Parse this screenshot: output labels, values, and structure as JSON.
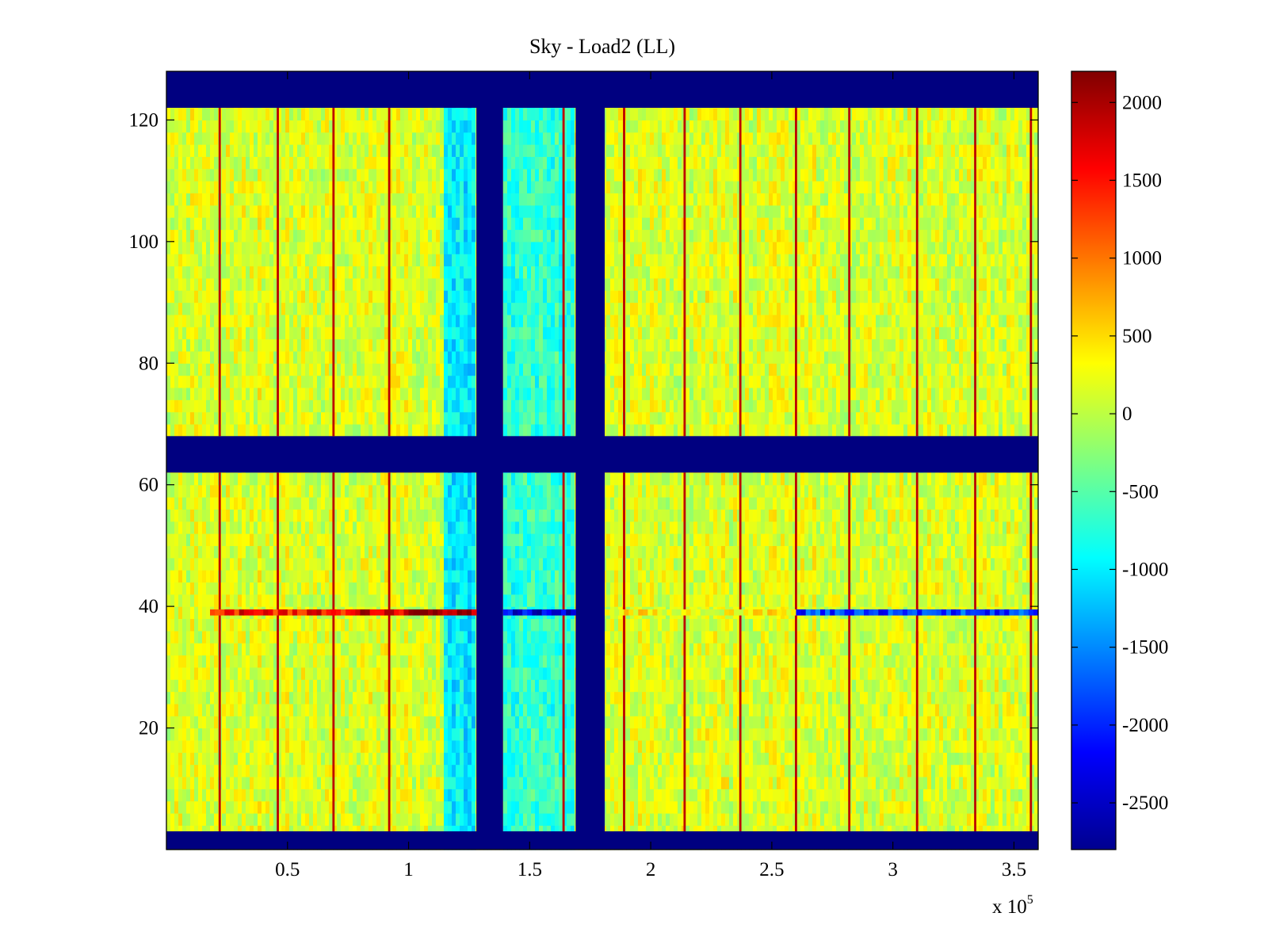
{
  "chart_data": {
    "type": "heatmap",
    "title": "Sky - Load2 (LL)",
    "xlabel": "",
    "ylabel": "",
    "x_exponent_label": "x 10",
    "x_exponent_power": "5",
    "xlim": [
      0,
      3.6
    ],
    "ylim": [
      0,
      128
    ],
    "x_ticks": [
      0.5,
      1,
      1.5,
      2,
      2.5,
      3,
      3.5
    ],
    "x_tick_labels": [
      "0.5",
      "1",
      "1.5",
      "2",
      "2.5",
      "3",
      "3.5"
    ],
    "y_ticks": [
      20,
      40,
      60,
      80,
      100,
      120
    ],
    "y_tick_labels": [
      "20",
      "40",
      "60",
      "80",
      "100",
      "120"
    ],
    "colorbar": {
      "colormap": "jet",
      "range": [
        -2800,
        2200
      ],
      "ticks": [
        -2500,
        -2000,
        -1500,
        -1000,
        -500,
        0,
        500,
        1000,
        1500,
        2000
      ],
      "tick_labels": [
        "-2500",
        "-2000",
        "-1500",
        "-1000",
        "-500",
        "0",
        "500",
        "1000",
        "1500",
        "2000"
      ]
    },
    "masked_value": -2800,
    "masked_rows": [
      [
        0,
        3
      ],
      [
        62,
        68
      ],
      [
        122,
        128
      ]
    ],
    "masked_columns": [
      [
        1.28,
        1.39
      ],
      [
        1.69,
        1.81
      ]
    ],
    "low_level_columns": [
      {
        "range": [
          1.15,
          1.28
        ],
        "level": -1000
      },
      {
        "range": [
          1.39,
          1.69
        ],
        "level": -700
      }
    ],
    "background_level": 150,
    "stripe_columns_x": [
      0.22,
      0.46,
      0.69,
      0.92,
      1.64,
      1.89,
      2.14,
      2.37,
      2.6,
      2.82,
      3.1,
      3.34,
      3.57
    ],
    "stripe_level": 1900,
    "anomaly_row": {
      "y": 39,
      "segments": [
        {
          "range": [
            0.18,
            0.8
          ],
          "level": 1500
        },
        {
          "range": [
            0.8,
            1.0
          ],
          "level": 1800
        },
        {
          "range": [
            1.0,
            1.28
          ],
          "level": 2100
        },
        {
          "range": [
            1.39,
            1.69
          ],
          "level": -2300
        },
        {
          "range": [
            1.81,
            2.6
          ],
          "level": 300
        },
        {
          "range": [
            2.6,
            3.6
          ],
          "level": -1900
        }
      ]
    }
  }
}
